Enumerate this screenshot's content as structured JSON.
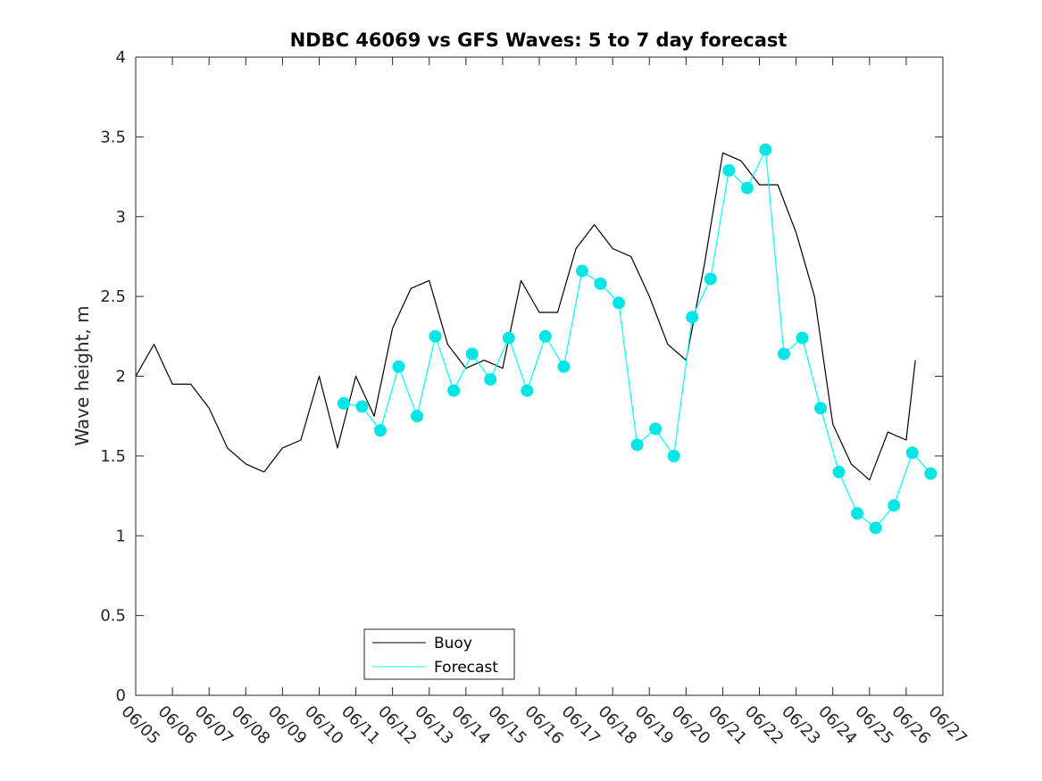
{
  "chart_data": {
    "type": "line",
    "title": "NDBC 46069 vs GFS Waves: 5 to 7 day forecast",
    "xlabel": "",
    "ylabel": "Wave height, m",
    "xlim": [
      "06/05",
      "06/27"
    ],
    "ylim": [
      0,
      4
    ],
    "x_tick_labels": [
      "06/05",
      "06/06",
      "06/07",
      "06/08",
      "06/09",
      "06/10",
      "06/11",
      "06/12",
      "06/13",
      "06/14",
      "06/15",
      "06/16",
      "06/17",
      "06/18",
      "06/19",
      "06/20",
      "06/21",
      "06/22",
      "06/23",
      "06/24",
      "06/25",
      "06/26",
      "06/27"
    ],
    "y_ticks": [
      0,
      0.5,
      1,
      1.5,
      2,
      2.5,
      3,
      3.5,
      4
    ],
    "y_tick_labels": [
      "0",
      "0.5",
      "1",
      "1.5",
      "2",
      "2.5",
      "3",
      "3.5",
      "4"
    ],
    "legend": {
      "position": "bottom-left",
      "entries": [
        "Buoy",
        "Forecast"
      ]
    },
    "colors": {
      "buoy": "#000000",
      "forecast": "#00ffff",
      "marker": "#00e5e5"
    },
    "series": [
      {
        "name": "Buoy",
        "x": [
          "06/05 00:00",
          "06/05 12:00",
          "06/06 00:00",
          "06/06 12:00",
          "06/07 00:00",
          "06/07 12:00",
          "06/08 00:00",
          "06/08 12:00",
          "06/09 00:00",
          "06/09 12:00",
          "06/10 00:00",
          "06/10 12:00",
          "06/11 00:00",
          "06/11 12:00",
          "06/12 00:00",
          "06/12 12:00",
          "06/13 00:00",
          "06/13 12:00",
          "06/14 00:00",
          "06/14 12:00",
          "06/15 00:00",
          "06/15 12:00",
          "06/16 00:00",
          "06/16 12:00",
          "06/17 00:00",
          "06/17 12:00",
          "06/18 00:00",
          "06/18 12:00",
          "06/19 00:00",
          "06/19 12:00",
          "06/20 00:00",
          "06/20 12:00",
          "06/21 00:00",
          "06/21 12:00",
          "06/22 00:00",
          "06/22 12:00",
          "06/23 00:00",
          "06/23 12:00",
          "06/24 00:00",
          "06/24 12:00",
          "06/25 00:00",
          "06/25 12:00",
          "06/26 00:00",
          "06/26 06:00"
        ],
        "values": [
          2.0,
          2.2,
          1.95,
          1.95,
          1.8,
          1.55,
          1.45,
          1.4,
          1.55,
          1.6,
          2.0,
          1.55,
          2.0,
          1.75,
          2.3,
          2.55,
          2.6,
          2.2,
          2.05,
          2.1,
          2.05,
          2.6,
          2.4,
          2.4,
          2.8,
          2.95,
          2.8,
          2.75,
          2.5,
          2.2,
          2.1,
          2.7,
          3.4,
          3.35,
          3.2,
          3.2,
          2.9,
          2.5,
          1.7,
          1.45,
          1.35,
          1.65,
          1.6,
          2.1
        ]
      },
      {
        "name": "Forecast",
        "x": [
          "06/10 16:00",
          "06/11 04:00",
          "06/11 16:00",
          "06/12 04:00",
          "06/12 16:00",
          "06/13 04:00",
          "06/13 16:00",
          "06/14 04:00",
          "06/14 16:00",
          "06/15 04:00",
          "06/15 16:00",
          "06/16 04:00",
          "06/16 16:00",
          "06/17 04:00",
          "06/17 16:00",
          "06/18 04:00",
          "06/18 16:00",
          "06/19 04:00",
          "06/19 16:00",
          "06/20 04:00",
          "06/20 16:00",
          "06/21 04:00",
          "06/21 16:00",
          "06/22 04:00",
          "06/22 16:00",
          "06/23 04:00",
          "06/23 16:00",
          "06/24 04:00",
          "06/24 16:00",
          "06/25 04:00",
          "06/25 16:00",
          "06/26 04:00",
          "06/26 16:00"
        ],
        "values": [
          1.83,
          1.81,
          1.66,
          2.06,
          1.75,
          2.25,
          1.91,
          2.14,
          1.98,
          2.24,
          1.91,
          2.25,
          2.06,
          2.66,
          2.58,
          2.46,
          1.57,
          1.67,
          1.5,
          2.37,
          2.61,
          3.29,
          3.18,
          3.42,
          2.14,
          2.24,
          1.8,
          1.4,
          1.14,
          1.05,
          1.19,
          1.52,
          1.39
        ]
      }
    ]
  }
}
